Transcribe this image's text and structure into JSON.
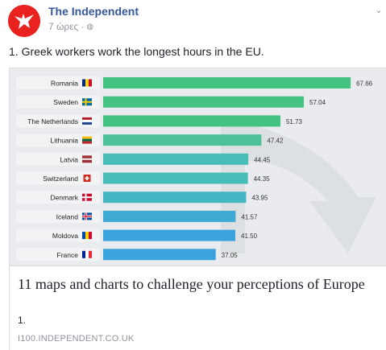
{
  "post": {
    "page_name": "The Independent",
    "time": "7 ώρες",
    "separator": "·",
    "text": "1. Greek workers work the longest hours in the EU."
  },
  "link": {
    "title": "11 maps and charts to challenge your perceptions of Europe",
    "description": "1.",
    "domain": "I100.INDEPENDENT.CO.UK"
  },
  "colors": {
    "brand_red": "#e9211f",
    "link_blue": "#365899",
    "bar_green": "#44c282",
    "bar_teal": "#46bdb6",
    "bar_blue": "#3aa2dc"
  },
  "chart_data": {
    "type": "bar",
    "orientation": "horizontal",
    "categories": [
      "Romania",
      "Sweden",
      "The Netherlands",
      "Lithuania",
      "Latvia",
      "Switzerland",
      "Denmark",
      "Iceland",
      "Moldova",
      "France"
    ],
    "values": [
      67.66,
      57.04,
      51.73,
      47.42,
      44.45,
      44.35,
      43.95,
      41.57,
      41.5,
      37.05
    ],
    "value_labels": [
      "67.66",
      "57.04",
      "51.73",
      "47.42",
      "44.45",
      "44.35",
      "43.95",
      "41.57",
      "41.50",
      "37.05"
    ],
    "bar_colors": [
      "#44c282",
      "#44c282",
      "#44c282",
      "#4cc19a",
      "#46bdb6",
      "#46bdb6",
      "#45b6c4",
      "#3fabd4",
      "#3aa2dc",
      "#3aa2dc"
    ],
    "flag_icons": [
      "flag-romania-icon",
      "flag-sweden-icon",
      "flag-netherlands-icon",
      "flag-lithuania-icon",
      "flag-latvia-icon",
      "flag-switzerland-icon",
      "flag-denmark-icon",
      "flag-iceland-icon",
      "flag-moldova-icon",
      "flag-france-icon"
    ],
    "xlim": [
      0,
      70
    ],
    "title": "",
    "xlabel": "",
    "ylabel": "",
    "grid": false,
    "legend": "none"
  }
}
